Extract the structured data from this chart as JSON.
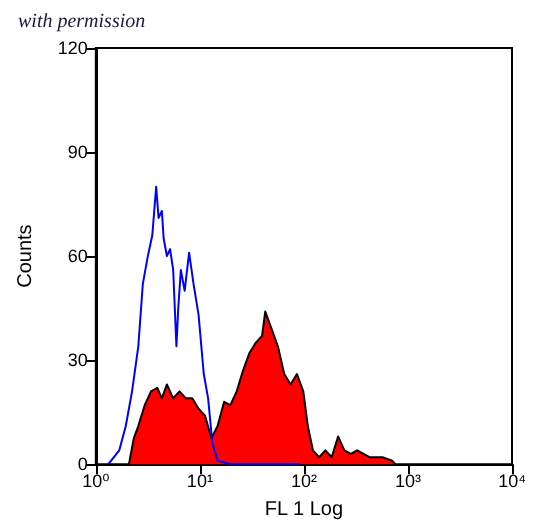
{
  "chart_data": {
    "type": "line",
    "xlabel": "FL 1 Log",
    "ylabel": "Counts",
    "annotations": [
      "with permission"
    ],
    "log": "x",
    "grid": false,
    "xlim": [
      1,
      10000
    ],
    "ylim": [
      0,
      120
    ],
    "xticks": [
      {
        "value": 1,
        "label": "10⁰"
      },
      {
        "value": 10,
        "label": "10¹"
      },
      {
        "value": 100,
        "label": "10²"
      },
      {
        "value": 1000,
        "label": "10³"
      },
      {
        "value": 10000,
        "label": "10⁴"
      }
    ],
    "yticks": [
      0,
      30,
      60,
      90,
      120
    ],
    "series": [
      {
        "type": "area",
        "color": "#ff0000",
        "x": [
          2.08,
          2.32,
          2.56,
          2.95,
          3.39,
          3.9,
          4.31,
          4.82,
          5.54,
          6.38,
          7.34,
          8.45,
          9.72,
          11.2,
          12.9,
          14.8,
          17.1,
          19.6,
          22.6,
          26,
          29.9,
          34.4,
          39.6,
          42.5,
          48.9,
          56.2,
          64.7,
          74.5,
          85.7,
          98.6,
          109,
          122,
          140,
          161,
          185,
          213,
          245,
          283,
          325,
          431,
          570,
          704,
          755
        ],
        "values": [
          0,
          7.5,
          11,
          17,
          21,
          22,
          19,
          23,
          19,
          21,
          19,
          19,
          16,
          14,
          7.5,
          11,
          18,
          17,
          21,
          27,
          32,
          35,
          37,
          44,
          39,
          34,
          26,
          23,
          26,
          21,
          11,
          4,
          2,
          4,
          2,
          8,
          4,
          3,
          4,
          2,
          2,
          1,
          0
        ]
      },
      {
        "color": "#0000ff",
        "x": [
          1.32,
          1.68,
          1.94,
          2.23,
          2.56,
          2.83,
          3.16,
          3.49,
          3.8,
          4.01,
          4.31,
          4.49,
          4.82,
          5.17,
          5.54,
          5.95,
          6.2,
          6.56,
          7.14,
          7.88,
          8.69,
          9.72,
          10.9,
          12,
          13.2,
          14.8,
          19.6,
          91.8
        ],
        "values": [
          0,
          4,
          11,
          21,
          34,
          52,
          60,
          66,
          80,
          71,
          73,
          65,
          60,
          62,
          56,
          34,
          45,
          56,
          50,
          61,
          52,
          43,
          26,
          19,
          6,
          1,
          0,
          0
        ]
      }
    ]
  }
}
